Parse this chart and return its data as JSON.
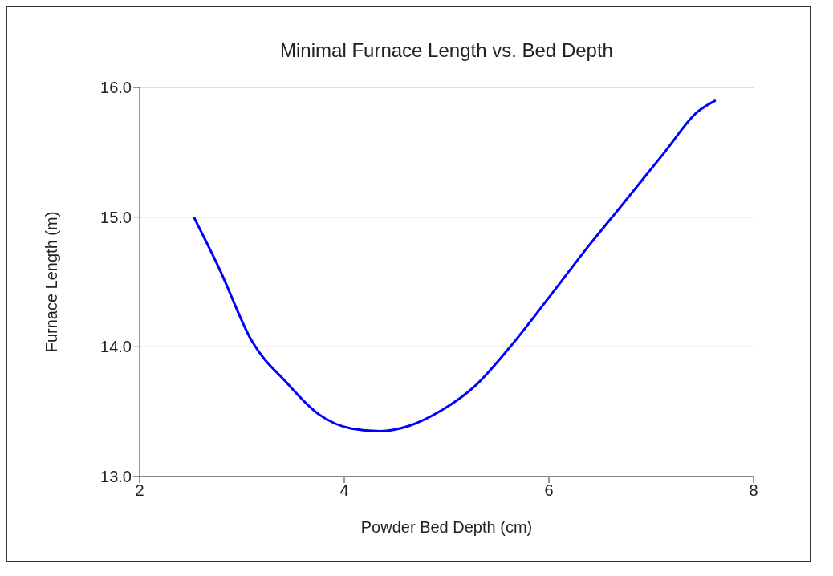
{
  "chart_data": {
    "type": "line",
    "title": "Minimal Furnace Length vs. Bed Depth",
    "xlabel": "Powder Bed Depth (cm)",
    "ylabel": "Furnace Length (m)",
    "x": [
      2.53,
      2.78,
      3.1,
      3.43,
      3.75,
      4.07,
      4.35,
      4.63,
      4.95,
      5.28,
      5.6,
      6.0,
      6.4,
      6.68,
      7.13,
      7.45,
      7.63
    ],
    "series": [
      {
        "color": "#0000ff",
        "values": [
          15.0,
          14.6,
          14.04,
          13.73,
          13.48,
          13.37,
          13.35,
          13.39,
          13.51,
          13.7,
          13.98,
          14.38,
          14.79,
          15.06,
          15.5,
          15.81,
          15.9
        ]
      }
    ],
    "xlim": [
      2,
      8
    ],
    "xticks": [
      2,
      4,
      6,
      8
    ],
    "ylim": [
      13,
      16
    ],
    "yticks": [
      {
        "value": 13,
        "label": "13.0"
      },
      {
        "value": 14,
        "label": "14.0"
      },
      {
        "value": 15,
        "label": "15.0"
      },
      {
        "value": 16,
        "label": "16.0"
      }
    ],
    "grid": "y",
    "legend": false,
    "marker": "none",
    "line_style": "solid"
  }
}
